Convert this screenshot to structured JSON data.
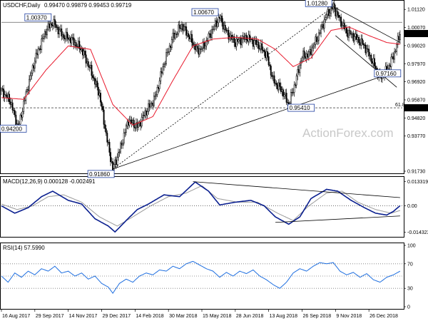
{
  "header": {
    "symbol_tf": "USDCHF,Daily",
    "ohlc": "0.99470 0.99879 0.99453 0.99719"
  },
  "watermark": "ActionForex.com",
  "price_panel": {
    "y_ticks": [
      "1.01120",
      "1.00070",
      "0.99020",
      "0.97970",
      "0.96920",
      "0.95870",
      "0.94820",
      "0.93770",
      "0.91730"
    ],
    "current_price": "0.99719",
    "fib_level": "0.95410",
    "fib_label": "61.8",
    "annotations": [
      "0.91860",
      "1.00370",
      "1.00670",
      "1.01280",
      "0.97160",
      "0.95410",
      "0.94200"
    ]
  },
  "macd_panel": {
    "label": "MACD(12,26,9) 0.000128 -0.002491",
    "y_ticks": [
      "0.013319",
      "0.00",
      "-0.014323"
    ]
  },
  "rsi_panel": {
    "label": "RSI(14) 57.5990",
    "y_ticks": [
      "100",
      "70",
      "30",
      "0"
    ]
  },
  "x_axis": {
    "labels": [
      "16 Aug 2017",
      "29 Sep 2017",
      "14 Nov 2017",
      "29 Dec 2017",
      "14 Feb 2018",
      "30 Mar 2018",
      "15 May 2018",
      "28 Jun 2018",
      "13 Aug 2018",
      "26 Sep 2018",
      "9 Nov 2018",
      "26 Dec 2018"
    ]
  },
  "colors": {
    "candles": "#000000",
    "ma": "#e8192c",
    "macd": "#0a1f8f",
    "signal": "#9a9a9a",
    "rsi": "#1f6fe0",
    "trendline": "#000000"
  },
  "chart_data": [
    {
      "type": "candlestick",
      "title": "USDCHF,Daily",
      "series": [
        {
          "name": "USDCHF",
          "anchors": [
            [
              0,
              0.964
            ],
            [
              8,
              0.958
            ],
            [
              15,
              0.942
            ],
            [
              22,
              0.962
            ],
            [
              30,
              0.982
            ],
            [
              40,
              0.999
            ],
            [
              46,
              1.0037
            ],
            [
              55,
              0.996
            ],
            [
              62,
              0.994
            ],
            [
              72,
              0.988
            ],
            [
              80,
              0.976
            ],
            [
              88,
              0.962
            ],
            [
              95,
              0.935
            ],
            [
              100,
              0.9186
            ],
            [
              106,
              0.929
            ],
            [
              114,
              0.947
            ],
            [
              122,
              0.943
            ],
            [
              130,
              0.952
            ],
            [
              138,
              0.96
            ],
            [
              146,
              0.98
            ],
            [
              154,
              0.995
            ],
            [
              162,
              1.002
            ],
            [
              168,
              0.996
            ],
            [
              176,
              0.987
            ],
            [
              182,
              0.99
            ],
            [
              190,
              1.0
            ],
            [
              196,
              1.0067
            ],
            [
              202,
              0.998
            ],
            [
              210,
              0.992
            ],
            [
              220,
              0.995
            ],
            [
              230,
              0.991
            ],
            [
              238,
              0.985
            ],
            [
              244,
              0.97
            ],
            [
              252,
              0.964
            ],
            [
              258,
              0.956
            ],
            [
              264,
              0.969
            ],
            [
              270,
              0.984
            ],
            [
              276,
              0.985
            ],
            [
              284,
              0.995
            ],
            [
              292,
              1.008
            ],
            [
              298,
              1.0128
            ],
            [
              304,
              1.005
            ],
            [
              310,
              0.998
            ],
            [
              318,
              0.995
            ],
            [
              326,
              0.99
            ],
            [
              334,
              0.98
            ],
            [
              340,
              0.9716
            ],
            [
              346,
              0.976
            ],
            [
              352,
              0.984
            ],
            [
              358,
              0.9972
            ]
          ]
        },
        {
          "name": "MA",
          "anchors": [
            [
              0,
              0.96
            ],
            [
              20,
              0.959
            ],
            [
              40,
              0.976
            ],
            [
              60,
              0.99
            ],
            [
              80,
              0.988
            ],
            [
              100,
              0.956
            ],
            [
              118,
              0.944
            ],
            [
              136,
              0.949
            ],
            [
              154,
              0.97
            ],
            [
              172,
              0.99
            ],
            [
              190,
              0.994
            ],
            [
              210,
              0.995
            ],
            [
              230,
              0.994
            ],
            [
              246,
              0.988
            ],
            [
              262,
              0.978
            ],
            [
              278,
              0.983
            ],
            [
              296,
              0.999
            ],
            [
              312,
              1.001
            ],
            [
              330,
              0.996
            ],
            [
              346,
              0.992
            ],
            [
              358,
              0.991
            ]
          ]
        }
      ],
      "annotations": [
        {
          "label": "0.91860",
          "x": 100,
          "y": 0.9186
        },
        {
          "label": "1.00370",
          "x": 46,
          "y": 1.0037
        },
        {
          "label": "1.00670",
          "x": 196,
          "y": 1.0067
        },
        {
          "label": "1.01280",
          "x": 298,
          "y": 1.0128
        },
        {
          "label": "0.97160",
          "x": 340,
          "y": 0.9716
        },
        {
          "label": "0.95410",
          "x": 264,
          "y": 0.9541
        },
        {
          "label": "0.94200",
          "x": 0,
          "y": 0.942
        }
      ],
      "trendlines": [
        {
          "from": [
            100,
            0.9186
          ],
          "to": [
            358,
            0.976
          ]
        },
        {
          "from": [
            100,
            0.9186
          ],
          "to": [
            298,
            1.0128
          ],
          "dashed": true
        },
        {
          "from": [
            298,
            1.0128
          ],
          "to": [
            358,
            0.992
          ]
        },
        {
          "from": [
            300,
            0.996
          ],
          "to": [
            355,
            0.966
          ]
        }
      ],
      "hlines": [
        {
          "y": 1.0037,
          "style": "solid",
          "color": "#7a7a7a"
        },
        {
          "y": 0.9541,
          "style": "dashed",
          "color": "#333333"
        }
      ],
      "ylim": [
        0.9173,
        1.015
      ],
      "xlim": [
        0,
        360
      ],
      "grid": false
    },
    {
      "type": "line",
      "title": "MACD(12,26,9) 0.000128 -0.002491",
      "series": [
        {
          "name": "MACD",
          "anchors": [
            [
              0,
              0.0
            ],
            [
              12,
              -0.004
            ],
            [
              24,
              -0.001
            ],
            [
              36,
              0.005
            ],
            [
              46,
              0.008
            ],
            [
              60,
              0.003
            ],
            [
              72,
              0.001
            ],
            [
              84,
              -0.007
            ],
            [
              96,
              -0.011
            ],
            [
              102,
              -0.0142
            ],
            [
              112,
              -0.008
            ],
            [
              122,
              -0.002
            ],
            [
              132,
              0.001
            ],
            [
              146,
              0.006
            ],
            [
              160,
              0.005
            ],
            [
              174,
              0.013
            ],
            [
              186,
              0.008
            ],
            [
              196,
              0.0005
            ],
            [
              210,
              0.002
            ],
            [
              224,
              0.003
            ],
            [
              236,
              0.0
            ],
            [
              246,
              -0.006
            ],
            [
              258,
              -0.01
            ],
            [
              268,
              -0.006
            ],
            [
              278,
              0.004
            ],
            [
              292,
              0.009
            ],
            [
              302,
              0.008
            ],
            [
              314,
              0.003
            ],
            [
              326,
              -0.001
            ],
            [
              336,
              -0.004
            ],
            [
              346,
              -0.005
            ],
            [
              352,
              -0.003
            ],
            [
              358,
              0.0001
            ]
          ]
        },
        {
          "name": "Signal",
          "anchors": [
            [
              0,
              0.001
            ],
            [
              14,
              -0.002
            ],
            [
              28,
              0.0
            ],
            [
              42,
              0.005
            ],
            [
              56,
              0.006
            ],
            [
              72,
              0.002
            ],
            [
              88,
              -0.006
            ],
            [
              104,
              -0.011
            ],
            [
              118,
              -0.006
            ],
            [
              134,
              0.0
            ],
            [
              150,
              0.005
            ],
            [
              166,
              0.007
            ],
            [
              180,
              0.011
            ],
            [
              194,
              0.004
            ],
            [
              212,
              0.002
            ],
            [
              230,
              0.002
            ],
            [
              248,
              -0.004
            ],
            [
              262,
              -0.008
            ],
            [
              276,
              0.0
            ],
            [
              292,
              0.007
            ],
            [
              306,
              0.008
            ],
            [
              320,
              0.002
            ],
            [
              336,
              -0.002
            ],
            [
              350,
              -0.004
            ],
            [
              358,
              -0.0025
            ]
          ]
        }
      ],
      "trendlines": [
        {
          "from": [
            172,
            0.0132
          ],
          "to": [
            358,
            0.0045
          ]
        },
        {
          "from": [
            246,
            -0.009
          ],
          "to": [
            358,
            -0.0055
          ]
        }
      ],
      "hlines": [
        {
          "y": 0,
          "style": "dotted",
          "color": "#555555"
        }
      ],
      "ylim": [
        -0.0157,
        0.0146
      ],
      "xlim": [
        0,
        360
      ],
      "grid": false
    },
    {
      "type": "line",
      "title": "RSI(14) 57.5990",
      "series": [
        {
          "name": "RSI",
          "anchors": [
            [
              0,
              50
            ],
            [
              6,
              40
            ],
            [
              12,
              55
            ],
            [
              18,
              48
            ],
            [
              24,
              58
            ],
            [
              30,
              52
            ],
            [
              36,
              62
            ],
            [
              42,
              58
            ],
            [
              48,
              66
            ],
            [
              54,
              55
            ],
            [
              60,
              58
            ],
            [
              66,
              50
            ],
            [
              72,
              55
            ],
            [
              78,
              45
            ],
            [
              84,
              50
            ],
            [
              90,
              38
            ],
            [
              96,
              32
            ],
            [
              100,
              22
            ],
            [
              106,
              38
            ],
            [
              112,
              45
            ],
            [
              118,
              40
            ],
            [
              124,
              50
            ],
            [
              130,
              55
            ],
            [
              136,
              52
            ],
            [
              142,
              60
            ],
            [
              148,
              58
            ],
            [
              154,
              66
            ],
            [
              160,
              62
            ],
            [
              166,
              70
            ],
            [
              172,
              74
            ],
            [
              178,
              68
            ],
            [
              184,
              62
            ],
            [
              190,
              58
            ],
            [
              196,
              48
            ],
            [
              202,
              56
            ],
            [
              208,
              50
            ],
            [
              214,
              58
            ],
            [
              220,
              54
            ],
            [
              226,
              60
            ],
            [
              232,
              50
            ],
            [
              238,
              44
            ],
            [
              244,
              36
            ],
            [
              250,
              30
            ],
            [
              256,
              40
            ],
            [
              262,
              55
            ],
            [
              268,
              62
            ],
            [
              274,
              58
            ],
            [
              280,
              66
            ],
            [
              286,
              72
            ],
            [
              292,
              70
            ],
            [
              298,
              72
            ],
            [
              304,
              58
            ],
            [
              310,
              52
            ],
            [
              316,
              56
            ],
            [
              322,
              48
            ],
            [
              328,
              54
            ],
            [
              334,
              44
            ],
            [
              340,
              40
            ],
            [
              346,
              48
            ],
            [
              352,
              52
            ],
            [
              358,
              58
            ]
          ]
        }
      ],
      "hlines": [
        {
          "y": 70,
          "style": "dotted",
          "color": "#777777"
        },
        {
          "y": 50,
          "style": "dotted",
          "color": "#777777"
        },
        {
          "y": 30,
          "style": "dotted",
          "color": "#777777"
        }
      ],
      "ylim": [
        0,
        100
      ],
      "xlim": [
        0,
        360
      ],
      "grid": false
    }
  ]
}
